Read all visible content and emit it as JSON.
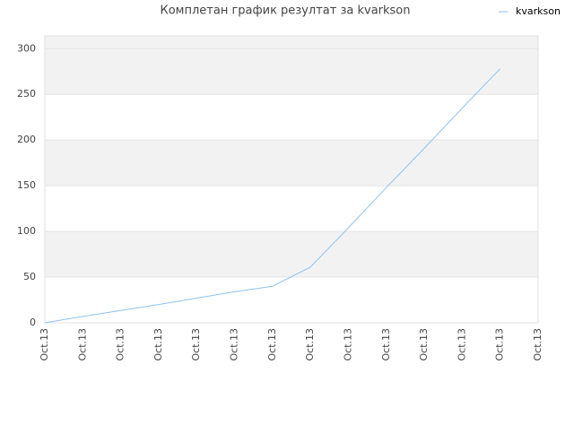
{
  "chart_data": {
    "type": "line",
    "title": "Комплетан график резултат за kvarkson",
    "categories": [
      "Oct.13",
      "Oct.13",
      "Oct.13",
      "Oct.13",
      "Oct.13",
      "Oct.13",
      "Oct.13",
      "Oct.13",
      "Oct.13",
      "Oct.13",
      "Oct.13",
      "Oct.13",
      "Oct.13",
      "Oct.13"
    ],
    "series": [
      {
        "name": "kvarkson",
        "color": "#8ec3ee",
        "values": [
          0,
          7,
          13.5,
          20,
          27,
          34,
          40,
          61,
          104,
          148,
          191,
          235,
          278,
          null
        ]
      }
    ],
    "ylim": [
      0,
      314
    ],
    "yticks": [
      0,
      50,
      100,
      150,
      200,
      250,
      300
    ],
    "grid": true,
    "legend": "top-right"
  }
}
